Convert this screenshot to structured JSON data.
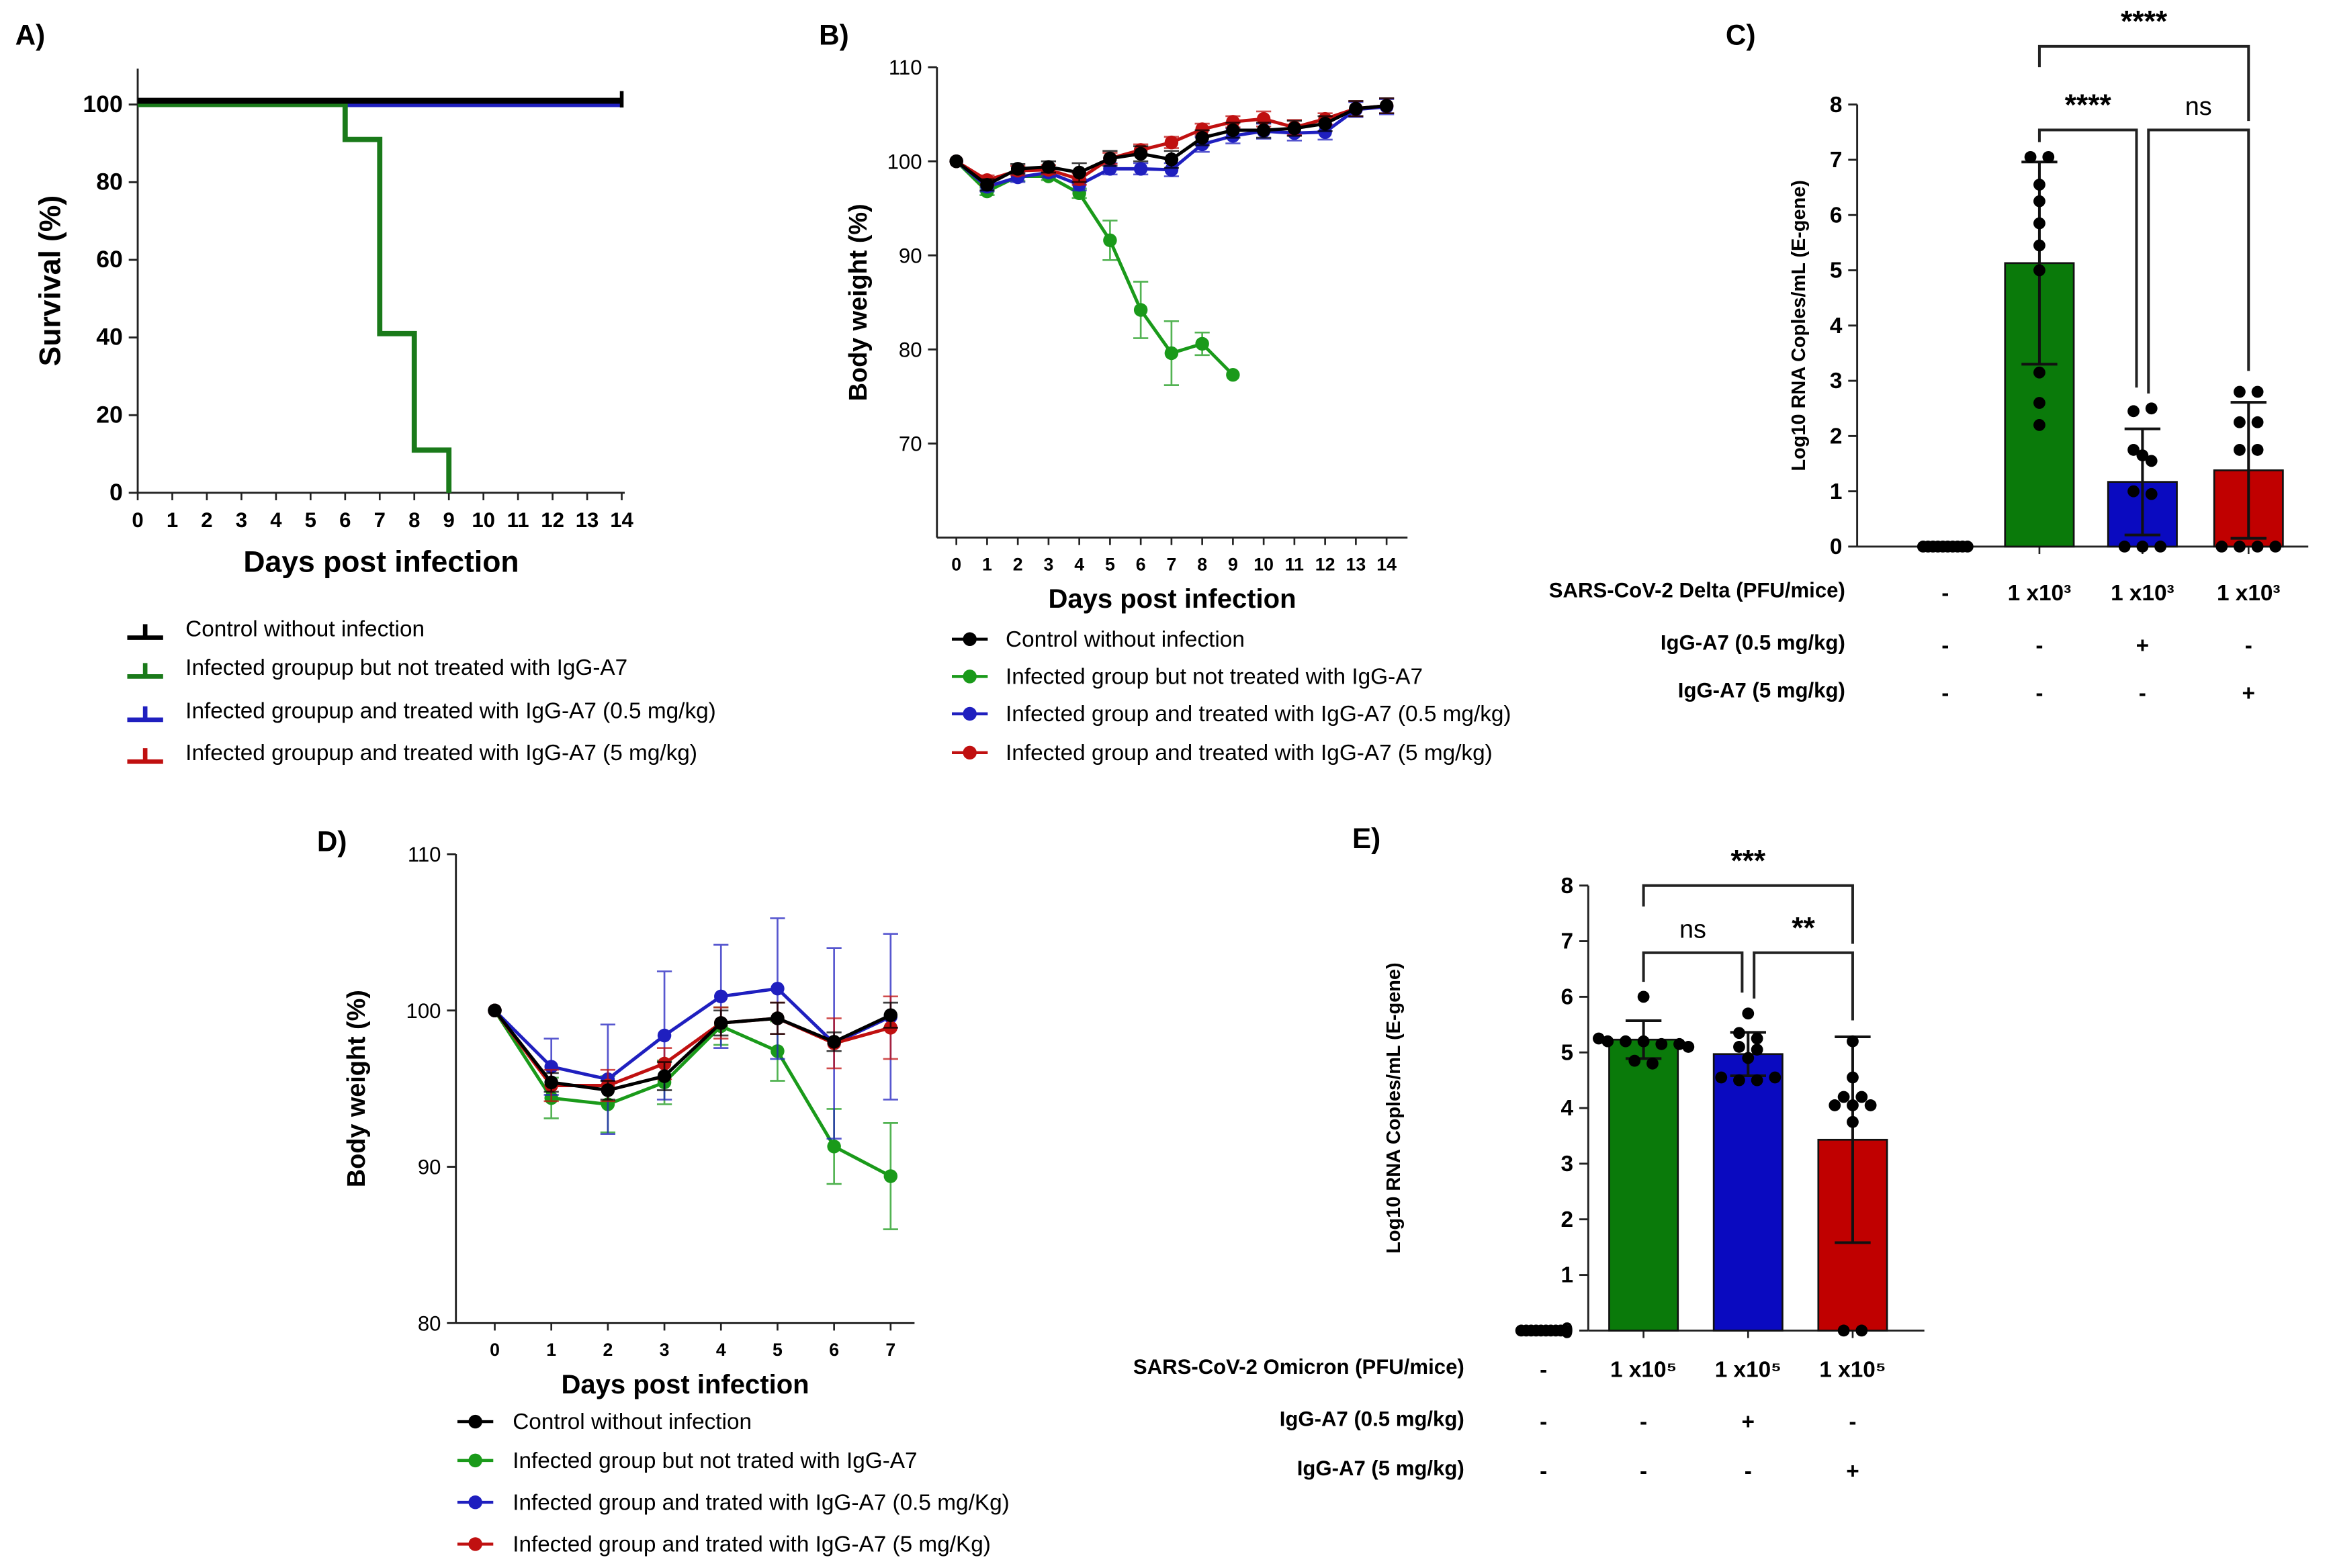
{
  "chart_data": [
    {
      "panel_label": "A)",
      "type": "line",
      "subtype": "survival-step",
      "xlabel": "Days post infection",
      "ylabel": "Survival (%)",
      "xlim": [
        0,
        14
      ],
      "ylim": [
        0,
        110
      ],
      "x_ticks": [
        0,
        1,
        2,
        3,
        4,
        5,
        6,
        7,
        8,
        9,
        10,
        11,
        12,
        13,
        14
      ],
      "y_ticks": [
        0,
        20,
        40,
        60,
        80,
        100
      ],
      "grid": false,
      "legend_position": "bottom",
      "series": [
        {
          "name": "Control without infection",
          "color": "#000000",
          "steps_x": [
            0,
            14
          ],
          "steps_y": [
            100
          ]
        },
        {
          "name": "Infected groupup but not treated with IgG-A7",
          "color": "#1a7a1a",
          "steps_x": [
            0,
            6,
            7,
            8,
            9
          ],
          "steps_y": [
            100,
            91,
            41,
            11,
            0
          ]
        },
        {
          "name": "Infected groupup and treated with IgG-A7 (0.5 mg/kg)",
          "color": "#1f1fbf",
          "steps_x": [
            0,
            14
          ],
          "steps_y": [
            100
          ]
        },
        {
          "name": "Infected groupup and treated with IgG-A7 (5 mg/kg)",
          "color": "#c01010",
          "steps_x": [
            0,
            14
          ],
          "steps_y": [
            100
          ]
        }
      ]
    },
    {
      "panel_label": "B)",
      "type": "line",
      "xlabel": "Days post infection",
      "ylabel": "Body weight (%)",
      "xlim": [
        0,
        14
      ],
      "ylim": [
        60,
        110
      ],
      "x_ticks": [
        0,
        1,
        2,
        3,
        4,
        5,
        6,
        7,
        8,
        9,
        10,
        11,
        12,
        13,
        14
      ],
      "y_ticks": [
        70,
        80,
        90,
        100,
        110
      ],
      "grid": false,
      "legend_position": "bottom",
      "series": [
        {
          "name": "Control without infection",
          "color": "#000000",
          "x": [
            0,
            1,
            2,
            3,
            4,
            5,
            6,
            7,
            8,
            9,
            10,
            11,
            12,
            13,
            14
          ],
          "y": [
            100,
            97.5,
            99.2,
            99.4,
            98.8,
            100.3,
            100.8,
            100.2,
            102.5,
            103.3,
            103.3,
            103.5,
            104,
            105.6,
            105.9
          ],
          "err": [
            0,
            0.6,
            0.5,
            0.6,
            1,
            0.8,
            0.8,
            0.9,
            0.8,
            0.8,
            0.8,
            0.8,
            0.8,
            0.8,
            0.8
          ]
        },
        {
          "name": "Infected group but not treated with IgG-A7",
          "color": "#1a9a1a",
          "x": [
            0,
            1,
            2,
            3,
            4,
            5,
            6,
            7,
            8,
            9
          ],
          "y": [
            100,
            96.8,
            98.4,
            98.4,
            96.6,
            91.6,
            84.2,
            79.6,
            80.6,
            77.3
          ],
          "err": [
            0,
            0.4,
            0.5,
            0.4,
            0.5,
            2.1,
            3,
            3.4,
            1.2,
            0
          ]
        },
        {
          "name": "Infected group and treated with IgG-A7 (0.5 mg/kg)",
          "color": "#1f1fbf",
          "x": [
            0,
            1,
            2,
            3,
            4,
            5,
            6,
            7,
            8,
            9,
            10,
            11,
            12,
            13,
            14
          ],
          "y": [
            100,
            97.3,
            98.3,
            98.8,
            97.5,
            99.2,
            99.2,
            99.1,
            101.8,
            102.7,
            103.2,
            103,
            103.1,
            105.5,
            105.8
          ],
          "err": [
            0,
            0.5,
            0.5,
            0.5,
            0.6,
            0.6,
            0.6,
            0.7,
            0.8,
            0.8,
            0.8,
            0.8,
            0.8,
            0.8,
            0.8
          ]
        },
        {
          "name": "Infected group and treated with IgG-A7 (5 mg/kg)",
          "color": "#c01010",
          "x": [
            0,
            1,
            2,
            3,
            4,
            5,
            6,
            7,
            8,
            9,
            10,
            11,
            12,
            13,
            14
          ],
          "y": [
            100,
            98,
            99,
            99.1,
            98.1,
            100.3,
            101.2,
            102,
            103.4,
            104.2,
            104.5,
            103.6,
            104.5,
            105.6,
            105.9
          ],
          "err": [
            0,
            0.5,
            0.5,
            0.5,
            0.6,
            0.6,
            0.6,
            0.6,
            0.6,
            0.6,
            0.8,
            0.8,
            0.6,
            0.8,
            0.8
          ]
        }
      ]
    },
    {
      "panel_label": "C)",
      "type": "bar",
      "ylabel": "Log10 RNA Coples/mL (E-gene)",
      "ylim": [
        0,
        8
      ],
      "y_ticks": [
        0,
        1,
        2,
        3,
        4,
        5,
        6,
        7,
        8
      ],
      "grid": false,
      "groups": [
        {
          "mean": 0,
          "sd": 0,
          "color": "#ffffff",
          "points": [
            0,
            0,
            0,
            0,
            0,
            0,
            0,
            0,
            0,
            0
          ]
        },
        {
          "mean": 5.13,
          "sd": 1.83,
          "color": "#0a7a0a",
          "points": [
            7.05,
            7.05,
            6.55,
            6.25,
            5.85,
            5.45,
            5.0,
            3.15,
            2.6,
            2.2
          ]
        },
        {
          "mean": 1.17,
          "sd": 0.96,
          "color": "#0a0ac0",
          "points": [
            2.45,
            2.5,
            1.75,
            1.65,
            1.55,
            1.0,
            0.95,
            0,
            0,
            0
          ]
        },
        {
          "mean": 1.38,
          "sd": 1.23,
          "color": "#c00000",
          "points": [
            2.8,
            2.8,
            2.25,
            2.25,
            1.75,
            1.75,
            0,
            0,
            0,
            0
          ]
        }
      ],
      "comparisons": [
        {
          "from": 1,
          "to": 3,
          "label": "****",
          "level": 0
        },
        {
          "from": 1,
          "to": 2,
          "label": "****",
          "level": 1
        },
        {
          "from": 2,
          "to": 3,
          "label": "ns",
          "level": 1
        }
      ],
      "conditions": [
        {
          "label": "SARS-CoV-2 Delta (PFU/mice)",
          "values": [
            "-",
            "1 x10³",
            "1 x10³",
            "1 x10³"
          ]
        },
        {
          "label": "IgG-A7 (0.5 mg/kg)",
          "values": [
            "-",
            "-",
            "+",
            "-"
          ]
        },
        {
          "label": "IgG-A7 (5 mg/kg)",
          "values": [
            "-",
            "-",
            "-",
            "+"
          ]
        }
      ]
    },
    {
      "panel_label": "D)",
      "type": "line",
      "xlabel": "Days post infection",
      "ylabel": "Body weight (%)",
      "xlim": [
        0,
        7
      ],
      "ylim": [
        80,
        110
      ],
      "x_ticks": [
        0,
        1,
        2,
        3,
        4,
        5,
        6,
        7
      ],
      "y_ticks": [
        80,
        90,
        100,
        110
      ],
      "grid": false,
      "legend_position": "bottom",
      "series": [
        {
          "name": "Control without infection",
          "color": "#000000",
          "x": [
            0,
            1,
            2,
            3,
            4,
            5,
            6,
            7
          ],
          "y": [
            100,
            95.4,
            94.9,
            95.8,
            99.2,
            99.5,
            98,
            99.7
          ],
          "err": [
            0,
            0.6,
            0.6,
            0.9,
            0.8,
            1,
            0.6,
            0.8
          ]
        },
        {
          "name": "Infected group but not trated with IgG-A7",
          "color": "#1a9a1a",
          "x": [
            0,
            1,
            2,
            3,
            4,
            5,
            6,
            7
          ],
          "y": [
            100,
            94.4,
            94.0,
            95.4,
            99.0,
            97.4,
            91.3,
            89.4
          ],
          "err": [
            0,
            1.3,
            1.8,
            1.4,
            1.2,
            1.9,
            2.4,
            3.4
          ]
        },
        {
          "name": "Infected group and trated with IgG-A7  (0.5 mg/Kg)",
          "color": "#1f1fbf",
          "x": [
            0,
            1,
            2,
            3,
            4,
            5,
            6,
            7
          ],
          "y": [
            100,
            96.4,
            95.6,
            98.4,
            100.9,
            101.4,
            97.9,
            99.6
          ],
          "err": [
            0,
            1.8,
            3.5,
            4.1,
            3.3,
            4.5,
            6.1,
            5.3
          ]
        },
        {
          "name": "Infected group and trated with IgG-A7 (5 mg/Kg)",
          "color": "#c01010",
          "x": [
            0,
            1,
            2,
            3,
            4,
            5,
            6,
            7
          ],
          "y": [
            100,
            95.2,
            95.2,
            96.6,
            99.2,
            99.5,
            97.9,
            98.9
          ],
          "err": [
            0,
            1,
            1,
            1,
            1,
            1,
            1.6,
            2
          ]
        }
      ]
    },
    {
      "panel_label": "E)",
      "type": "bar",
      "ylabel": "Log10 RNA Coples/mL (E-gene)",
      "ylim": [
        0,
        8
      ],
      "y_ticks": [
        0,
        1,
        2,
        3,
        4,
        5,
        6,
        7,
        8
      ],
      "grid": false,
      "groups": [
        {
          "mean": 0,
          "sd": 0,
          "color": "#ffffff",
          "points": [
            0,
            0,
            0,
            0,
            0,
            0,
            0,
            0,
            0,
            0
          ]
        },
        {
          "mean": 5.23,
          "sd": 0.34,
          "color": "#0a7a0a",
          "points": [
            6.0,
            5.25,
            5.2,
            5.2,
            5.2,
            5.15,
            5.15,
            5.1,
            4.85,
            4.8
          ]
        },
        {
          "mean": 4.97,
          "sd": 0.39,
          "color": "#0a0ac0",
          "points": [
            5.7,
            5.35,
            5.25,
            5.1,
            5.05,
            4.9,
            4.55,
            4.5,
            4.5,
            4.55
          ]
        },
        {
          "mean": 3.43,
          "sd": 1.85,
          "color": "#c00000",
          "points": [
            5.2,
            4.55,
            4.2,
            4.2,
            4.05,
            4.05,
            4.05,
            3.75,
            0,
            0
          ]
        }
      ],
      "comparisons": [
        {
          "from": 1,
          "to": 3,
          "label": "***",
          "level": 0
        },
        {
          "from": 1,
          "to": 2,
          "label": "ns",
          "level": 1
        },
        {
          "from": 2,
          "to": 3,
          "label": "**",
          "level": 1
        }
      ],
      "conditions": [
        {
          "label": "SARS-CoV-2 Omicron (PFU/mice)",
          "values": [
            "-",
            "1 x10⁵",
            "1 x10⁵",
            "1 x10⁵"
          ]
        },
        {
          "label": "IgG-A7 (0.5 mg/kg)",
          "values": [
            "-",
            "-",
            "+",
            "-"
          ]
        },
        {
          "label": "IgG-A7 (5 mg/kg)",
          "values": [
            "-",
            "-",
            "-",
            "+"
          ]
        }
      ]
    }
  ]
}
